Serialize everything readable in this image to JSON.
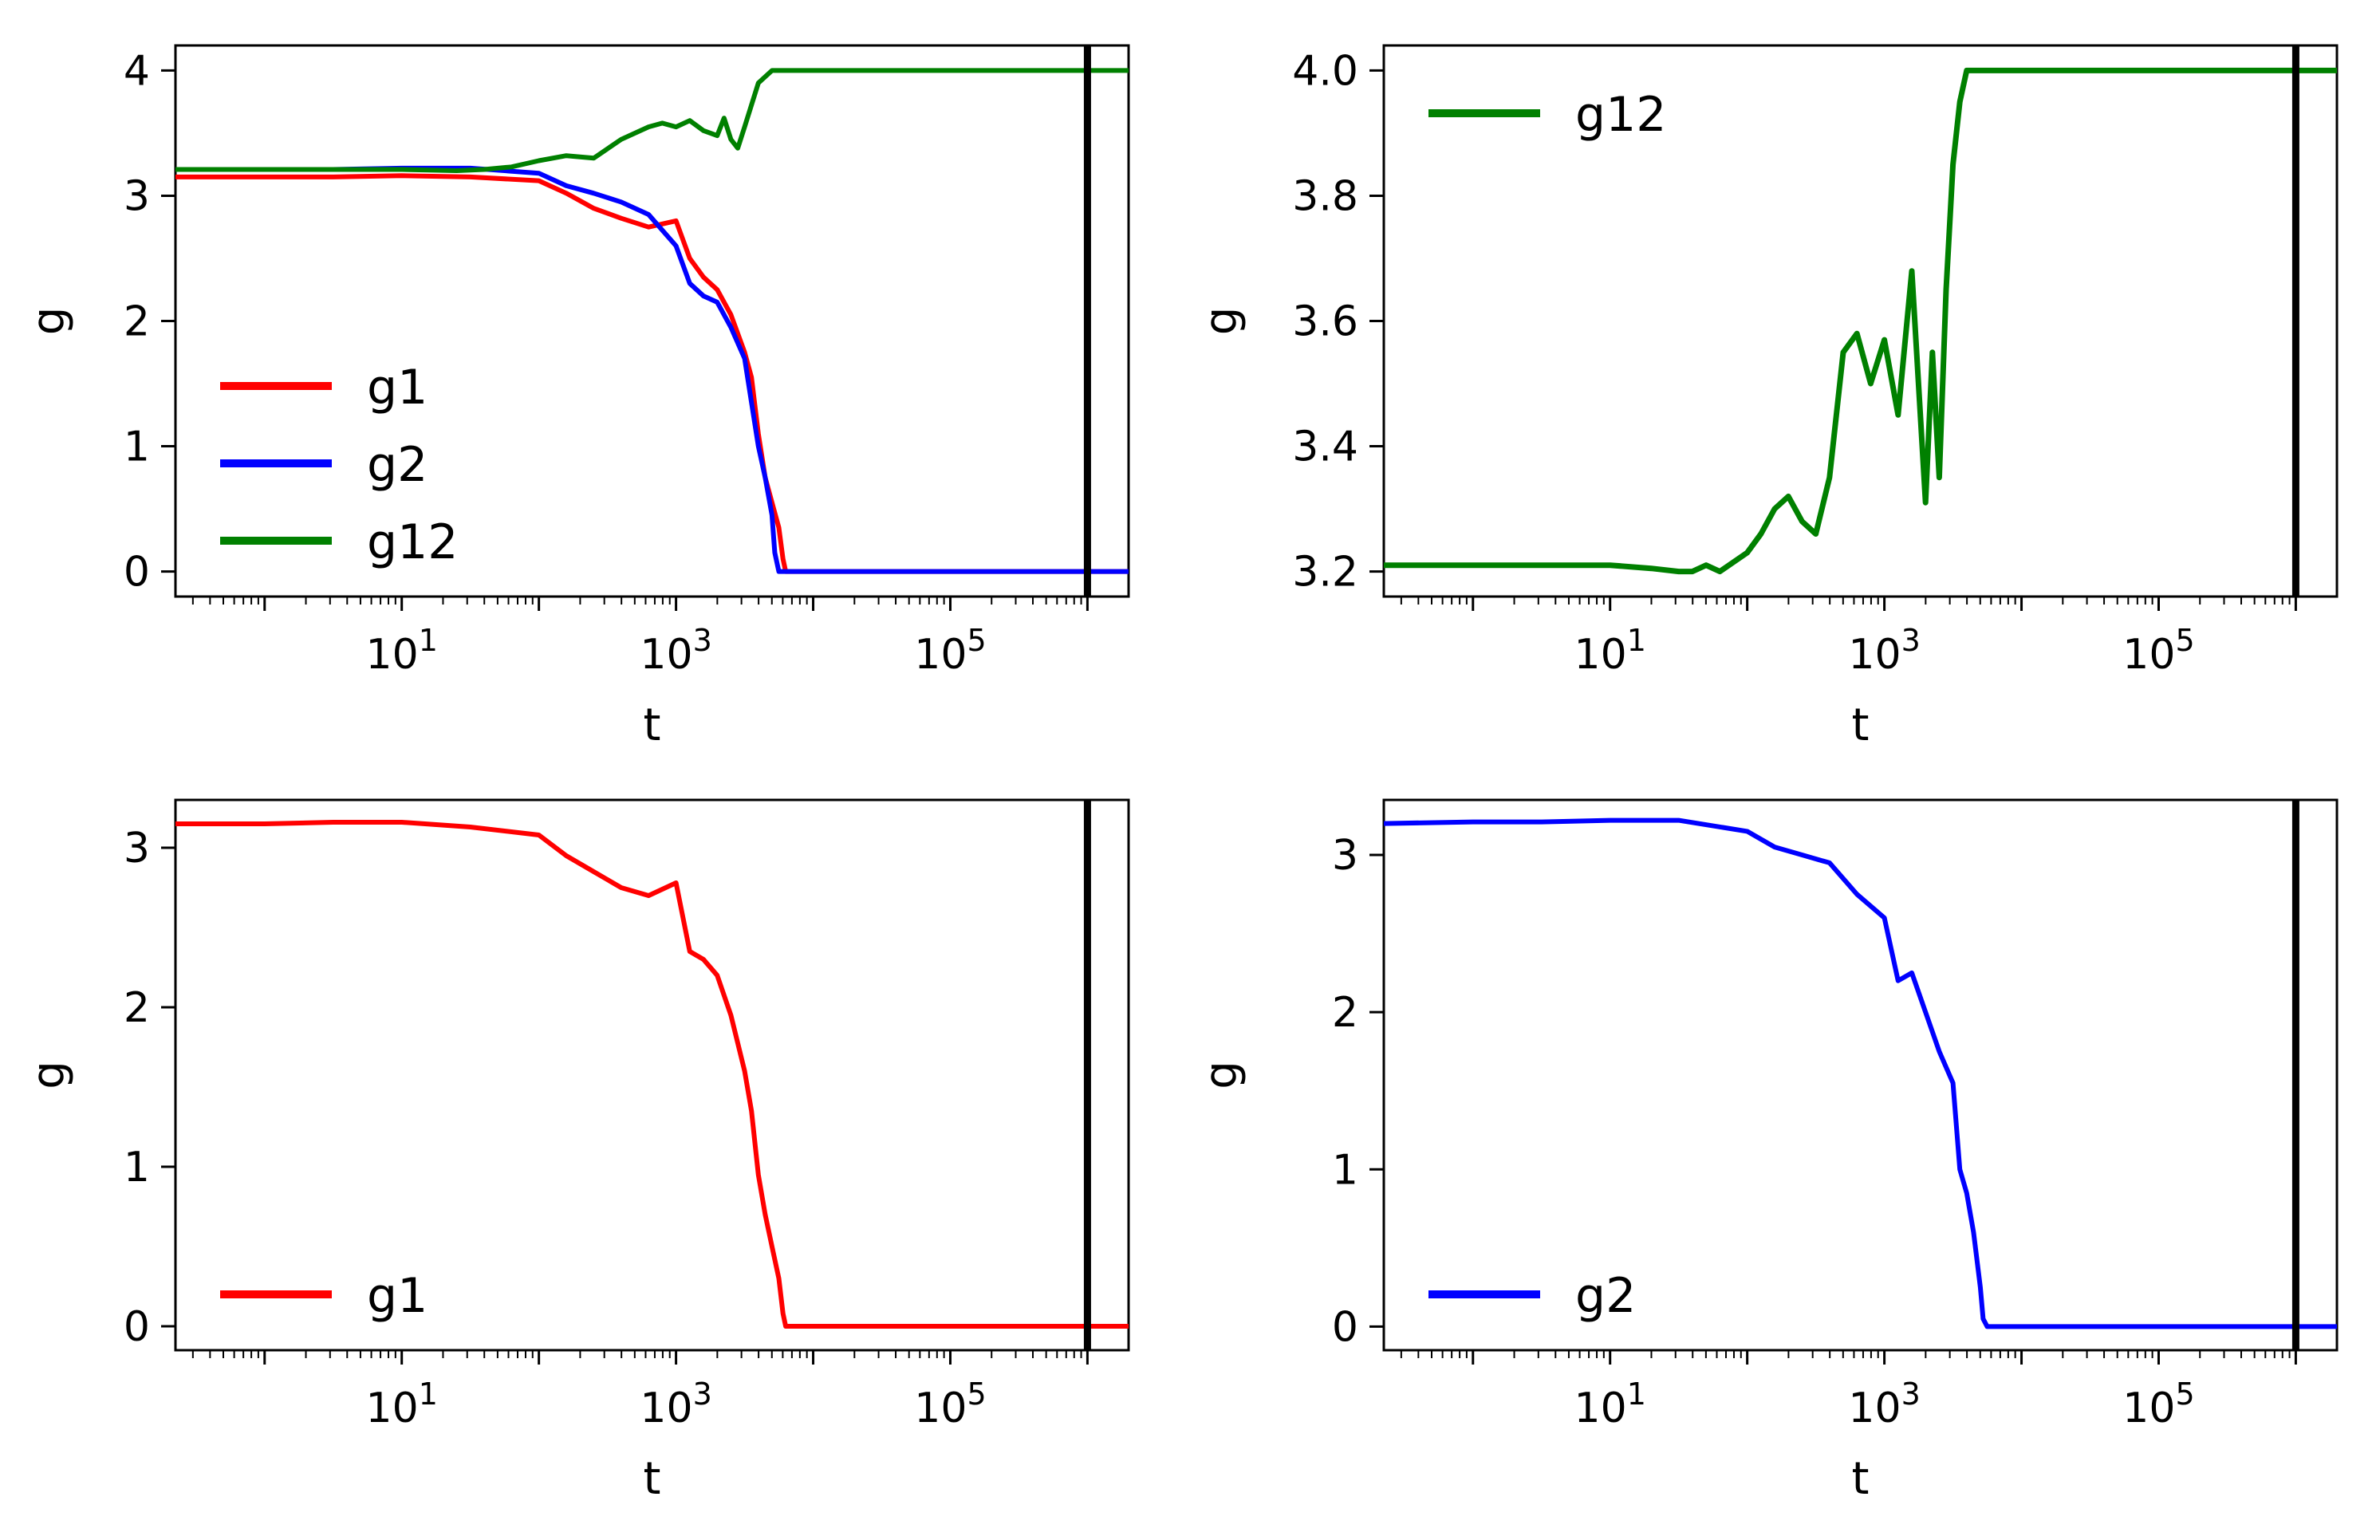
{
  "chart_data": [
    {
      "type": "line",
      "position": "top-left",
      "xscale": "log",
      "xlim_log10": [
        -0.65,
        6.3
      ],
      "ylim": [
        -0.2,
        4.2
      ],
      "xlabel": "t",
      "ylabel": "g",
      "xticks": [
        {
          "exp": 1,
          "base": "10",
          "sup": "1"
        },
        {
          "exp": 3,
          "base": "10",
          "sup": "3"
        },
        {
          "exp": 5,
          "base": "10",
          "sup": "5"
        }
      ],
      "yticks": [
        0,
        1,
        2,
        3,
        4
      ],
      "ytick_labels": [
        "0",
        "1",
        "2",
        "3",
        "4"
      ],
      "vline_log10": 6.0,
      "legend": {
        "placement": "lower-left",
        "entries": [
          "g1",
          "g2",
          "g12"
        ]
      },
      "series": [
        {
          "name": "g1",
          "color": "#ff0000",
          "lw": 6,
          "x": [
            -0.65,
            0,
            0.5,
            1,
            1.5,
            2,
            2.2,
            2.4,
            2.6,
            2.8,
            3,
            3.1,
            3.2,
            3.3,
            3.4,
            3.5,
            3.55,
            3.6,
            3.65,
            3.7,
            3.75,
            3.78,
            3.8,
            3.85,
            6.3
          ],
          "y": [
            3.15,
            3.15,
            3.15,
            3.16,
            3.15,
            3.12,
            3.02,
            2.9,
            2.82,
            2.75,
            2.8,
            2.5,
            2.35,
            2.25,
            2.05,
            1.75,
            1.55,
            1.1,
            0.75,
            0.55,
            0.35,
            0.1,
            0.0,
            0.0,
            0.0
          ]
        },
        {
          "name": "g2",
          "color": "#0000ff",
          "lw": 6,
          "x": [
            -0.65,
            0,
            0.5,
            1,
            1.5,
            2,
            2.2,
            2.4,
            2.6,
            2.8,
            3,
            3.1,
            3.2,
            3.3,
            3.4,
            3.5,
            3.55,
            3.6,
            3.65,
            3.7,
            3.72,
            3.75,
            6.3
          ],
          "y": [
            3.21,
            3.21,
            3.21,
            3.22,
            3.22,
            3.18,
            3.08,
            3.02,
            2.95,
            2.85,
            2.6,
            2.3,
            2.2,
            2.15,
            1.95,
            1.7,
            1.35,
            1.0,
            0.75,
            0.45,
            0.15,
            0.0,
            0.0
          ]
        },
        {
          "name": "g12",
          "color": "#008000",
          "lw": 6,
          "x": [
            -0.65,
            0,
            0.5,
            1,
            1.4,
            1.6,
            1.8,
            2,
            2.2,
            2.4,
            2.6,
            2.8,
            2.9,
            3,
            3.1,
            3.2,
            3.3,
            3.35,
            3.4,
            3.45,
            3.5,
            3.6,
            3.7,
            3.75,
            6.3
          ],
          "y": [
            3.21,
            3.21,
            3.21,
            3.21,
            3.2,
            3.21,
            3.23,
            3.28,
            3.32,
            3.3,
            3.45,
            3.55,
            3.58,
            3.55,
            3.6,
            3.52,
            3.48,
            3.62,
            3.45,
            3.38,
            3.55,
            3.9,
            4.0,
            4.0,
            4.0
          ]
        }
      ]
    },
    {
      "type": "line",
      "position": "top-right",
      "xscale": "log",
      "xlim_log10": [
        -0.65,
        6.3
      ],
      "ylim": [
        3.16,
        4.04
      ],
      "xlabel": "t",
      "ylabel": "g",
      "xticks": [
        {
          "exp": 1,
          "base": "10",
          "sup": "1"
        },
        {
          "exp": 3,
          "base": "10",
          "sup": "3"
        },
        {
          "exp": 5,
          "base": "10",
          "sup": "5"
        }
      ],
      "yticks": [
        3.2,
        3.4,
        3.6,
        3.8,
        4.0
      ],
      "ytick_labels": [
        "3.2",
        "3.4",
        "3.6",
        "3.8",
        "4.0"
      ],
      "vline_log10": 6.0,
      "legend": {
        "placement": "upper-left",
        "entries": [
          "g12"
        ]
      },
      "series": [
        {
          "name": "g12",
          "color": "#008000",
          "lw": 7,
          "x": [
            -0.65,
            0,
            0.5,
            1,
            1.3,
            1.5,
            1.6,
            1.7,
            1.8,
            2,
            2.1,
            2.2,
            2.3,
            2.4,
            2.5,
            2.6,
            2.65,
            2.7,
            2.8,
            2.9,
            3,
            3.1,
            3.2,
            3.3,
            3.35,
            3.4,
            3.45,
            3.5,
            3.55,
            3.6,
            3.7,
            6.3
          ],
          "y": [
            3.21,
            3.21,
            3.21,
            3.21,
            3.205,
            3.2,
            3.2,
            3.21,
            3.2,
            3.23,
            3.26,
            3.3,
            3.32,
            3.28,
            3.26,
            3.35,
            3.45,
            3.55,
            3.58,
            3.5,
            3.57,
            3.45,
            3.68,
            3.31,
            3.55,
            3.35,
            3.65,
            3.85,
            3.95,
            4.0,
            4.0,
            4.0
          ]
        }
      ]
    },
    {
      "type": "line",
      "position": "bottom-left",
      "xscale": "log",
      "xlim_log10": [
        -0.65,
        6.3
      ],
      "ylim": [
        -0.15,
        3.3
      ],
      "xlabel": "t",
      "ylabel": "g",
      "xticks": [
        {
          "exp": 1,
          "base": "10",
          "sup": "1"
        },
        {
          "exp": 3,
          "base": "10",
          "sup": "3"
        },
        {
          "exp": 5,
          "base": "10",
          "sup": "5"
        }
      ],
      "yticks": [
        0,
        1,
        2,
        3
      ],
      "ytick_labels": [
        "0",
        "1",
        "2",
        "3"
      ],
      "vline_log10": 6.0,
      "legend": {
        "placement": "lower-left",
        "entries": [
          "g1"
        ]
      },
      "series": [
        {
          "name": "g1",
          "color": "#ff0000",
          "lw": 6,
          "x": [
            -0.65,
            0,
            0.5,
            1,
            1.5,
            2,
            2.2,
            2.4,
            2.6,
            2.8,
            3,
            3.1,
            3.2,
            3.3,
            3.4,
            3.5,
            3.55,
            3.6,
            3.65,
            3.7,
            3.75,
            3.78,
            3.8,
            3.85,
            6.3
          ],
          "y": [
            3.15,
            3.15,
            3.16,
            3.16,
            3.13,
            3.08,
            2.95,
            2.85,
            2.75,
            2.7,
            2.78,
            2.35,
            2.3,
            2.2,
            1.95,
            1.6,
            1.35,
            0.95,
            0.7,
            0.5,
            0.3,
            0.08,
            0.0,
            0.0,
            0.0
          ]
        }
      ]
    },
    {
      "type": "line",
      "position": "bottom-right",
      "xscale": "log",
      "xlim_log10": [
        -0.65,
        6.3
      ],
      "ylim": [
        -0.15,
        3.35
      ],
      "xlabel": "t",
      "ylabel": "g",
      "xticks": [
        {
          "exp": 1,
          "base": "10",
          "sup": "1"
        },
        {
          "exp": 3,
          "base": "10",
          "sup": "3"
        },
        {
          "exp": 5,
          "base": "10",
          "sup": "5"
        }
      ],
      "yticks": [
        0,
        1,
        2,
        3
      ],
      "ytick_labels": [
        "0",
        "1",
        "2",
        "3"
      ],
      "vline_log10": 6.0,
      "legend": {
        "placement": "lower-left",
        "entries": [
          "g2"
        ]
      },
      "series": [
        {
          "name": "g2",
          "color": "#0000ff",
          "lw": 6,
          "x": [
            -0.65,
            0,
            0.5,
            1,
            1.5,
            2,
            2.2,
            2.4,
            2.6,
            2.8,
            3,
            3.1,
            3.2,
            3.3,
            3.4,
            3.5,
            3.55,
            3.6,
            3.65,
            3.7,
            3.72,
            3.75,
            6.3
          ],
          "y": [
            3.2,
            3.21,
            3.21,
            3.22,
            3.22,
            3.15,
            3.05,
            3.0,
            2.95,
            2.75,
            2.6,
            2.2,
            2.25,
            2.0,
            1.75,
            1.55,
            1.0,
            0.85,
            0.6,
            0.25,
            0.05,
            0.0,
            0.0
          ]
        }
      ]
    }
  ]
}
